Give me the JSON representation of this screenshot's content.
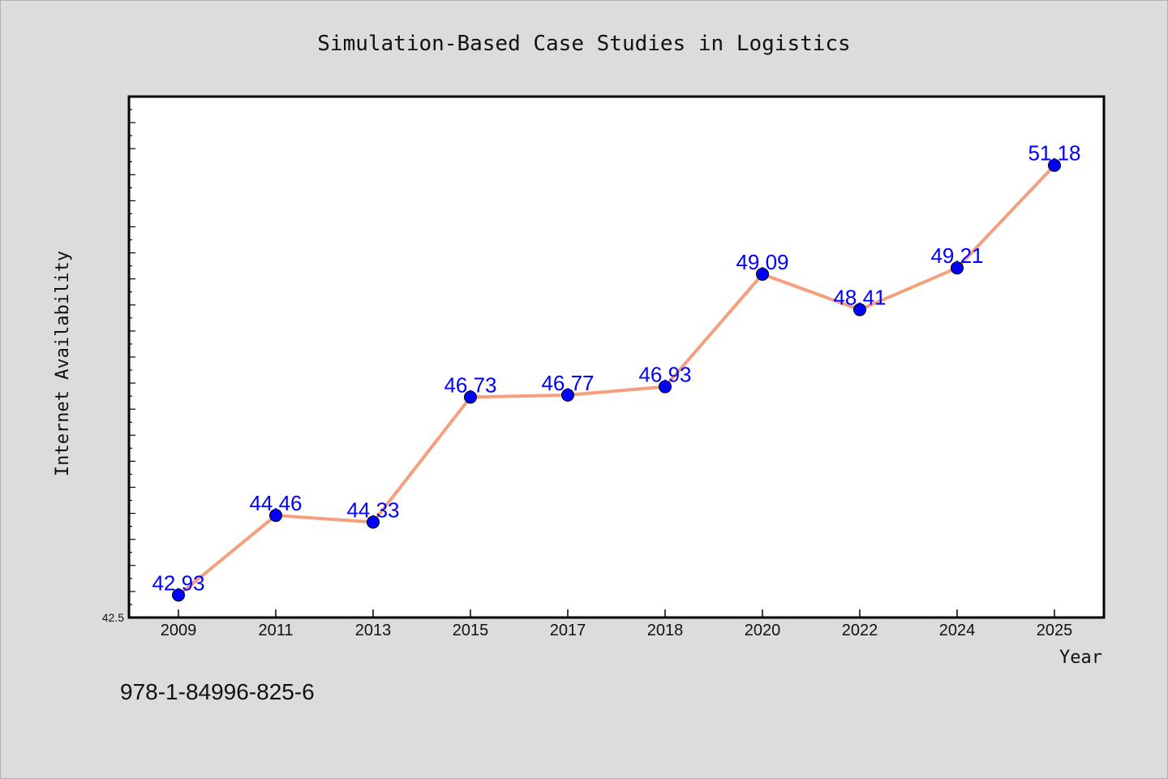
{
  "chart_data": {
    "type": "line",
    "title": "Simulation-Based Case Studies in Logistics",
    "xlabel": "Year",
    "ylabel": "Internet Availability",
    "categories": [
      "2009",
      "2011",
      "2013",
      "2015",
      "2017",
      "2018",
      "2020",
      "2022",
      "2024",
      "2025"
    ],
    "series": [
      {
        "values": [
          42.93,
          44.46,
          44.33,
          46.73,
          46.77,
          46.93,
          49.09,
          48.41,
          49.21,
          51.18
        ],
        "data_labels": [
          "42.93",
          "44.46",
          "44.33",
          "46.73",
          "46.77",
          "46.93",
          "49.09",
          "48.41",
          "49.21",
          "51.18"
        ],
        "line_color": "#f4a07e",
        "marker_color": "#0000ff"
      }
    ],
    "ylim": [
      42.5,
      52.5
    ],
    "yticks_labeled": [
      "42.5"
    ],
    "grid": false,
    "legend": "none"
  },
  "footer": {
    "isbn": "978-1-84996-825-6"
  }
}
